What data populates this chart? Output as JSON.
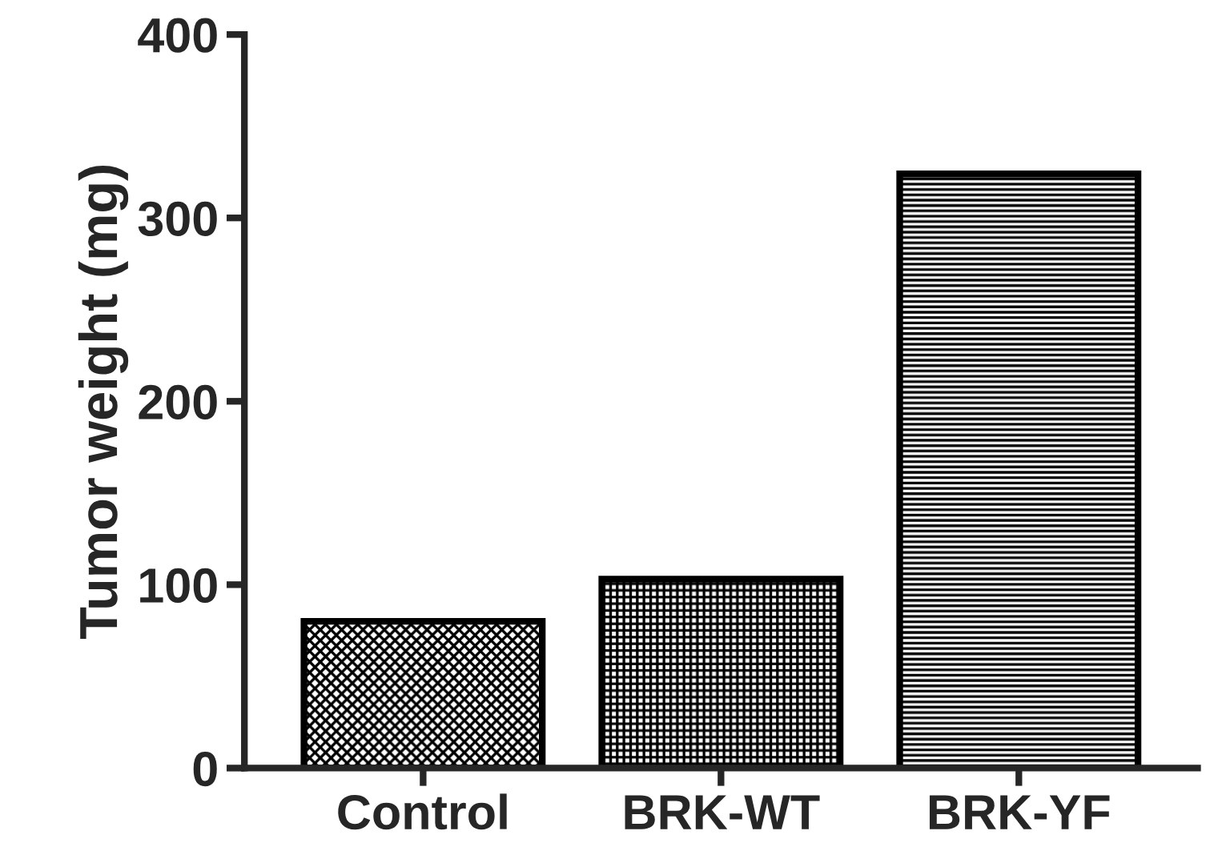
{
  "chart_data": {
    "type": "bar",
    "ylabel": "Tumor weight (mg)",
    "categories": [
      "Control",
      "BRK-WT",
      "BRK-YF"
    ],
    "values": [
      80,
      103,
      324
    ],
    "colors": [
      "#000000",
      "#000000",
      "#000000"
    ],
    "ylim": [
      0,
      400
    ],
    "yticks": [
      0,
      100,
      200,
      300,
      400
    ],
    "grid": false,
    "legend": false
  }
}
